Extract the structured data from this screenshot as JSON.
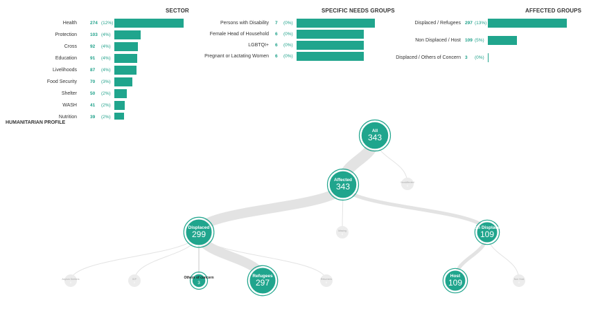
{
  "sector": {
    "title": "SECTOR",
    "rows": [
      {
        "label": "Health",
        "count": "274",
        "pct": "(12%)",
        "value": 274
      },
      {
        "label": "Protection",
        "count": "103",
        "pct": "(4%)",
        "value": 103
      },
      {
        "label": "Cross",
        "count": "92",
        "pct": "(4%)",
        "value": 92
      },
      {
        "label": "Education",
        "count": "91",
        "pct": "(4%)",
        "value": 91
      },
      {
        "label": "Livelihoods",
        "count": "87",
        "pct": "(4%)",
        "value": 87
      },
      {
        "label": "Food Security",
        "count": "70",
        "pct": "(3%)",
        "value": 70
      },
      {
        "label": "Shelter",
        "count": "50",
        "pct": "(2%)",
        "value": 50
      },
      {
        "label": "WASH",
        "count": "41",
        "pct": "(2%)",
        "value": 41
      },
      {
        "label": "Nutrition",
        "count": "39",
        "pct": "(2%)",
        "value": 39
      }
    ]
  },
  "needs": {
    "title": "SPECIFIC NEEDS GROUPS",
    "rows": [
      {
        "label": "Persons with Disability",
        "count": "7",
        "pct": "(0%)",
        "value": 7
      },
      {
        "label": "Female Head of Household",
        "count": "6",
        "pct": "(0%)",
        "value": 6
      },
      {
        "label": "LGBTQI+",
        "count": "6",
        "pct": "(0%)",
        "value": 6
      },
      {
        "label": "Pregnant or Lactating Women",
        "count": "6",
        "pct": "(0%)",
        "value": 6
      }
    ]
  },
  "affected": {
    "title": "AFFECTED GROUPS",
    "rows": [
      {
        "label": "Displaced / Refugees",
        "count": "297",
        "pct": "(13%)",
        "value": 297
      },
      {
        "label": "Non Displaced / Host",
        "count": "109",
        "pct": "(5%)",
        "value": 109
      },
      {
        "label": "Displaced / Others of Concern",
        "count": "3",
        "pct": "(0%)",
        "value": 3
      }
    ]
  },
  "profile": {
    "title": "HUMANITARIAN PROFILE"
  },
  "chart_data": {
    "type": "tree",
    "nodes": [
      {
        "id": "all",
        "label": "All",
        "value": 343
      },
      {
        "id": "affected",
        "label": "Affected",
        "value": 343,
        "parent": "all"
      },
      {
        "id": "nonaffected",
        "label": "NonAffected",
        "value": 0,
        "parent": "all"
      },
      {
        "id": "displaced",
        "label": "Displaced",
        "value": 299,
        "parent": "affected"
      },
      {
        "id": "missing",
        "label": "Missing",
        "value": 0,
        "parent": "affected"
      },
      {
        "id": "nondisplaced",
        "label": "Non Displaced",
        "value": 109,
        "parent": "affected"
      },
      {
        "id": "asylum",
        "label": "Asylum Seekers",
        "value": 0,
        "parent": "displaced"
      },
      {
        "id": "idp",
        "label": "IDP",
        "value": 0,
        "parent": "displaced"
      },
      {
        "id": "others",
        "label": "Others of concern",
        "value": 3,
        "parent": "displaced"
      },
      {
        "id": "refugees",
        "label": "Refugees",
        "value": 297,
        "parent": "displaced"
      },
      {
        "id": "returnees",
        "label": "Returnees",
        "value": 0,
        "parent": "displaced"
      },
      {
        "id": "host",
        "label": "Host",
        "value": 109,
        "parent": "nondisplaced"
      },
      {
        "id": "nonhost",
        "label": "Non Host",
        "value": 0,
        "parent": "nondisplaced"
      }
    ]
  },
  "colors": {
    "accent": "#20a58d",
    "node_fill": "#20a58d",
    "node_inactive": "#ececec",
    "link": "#e3e3e3"
  }
}
